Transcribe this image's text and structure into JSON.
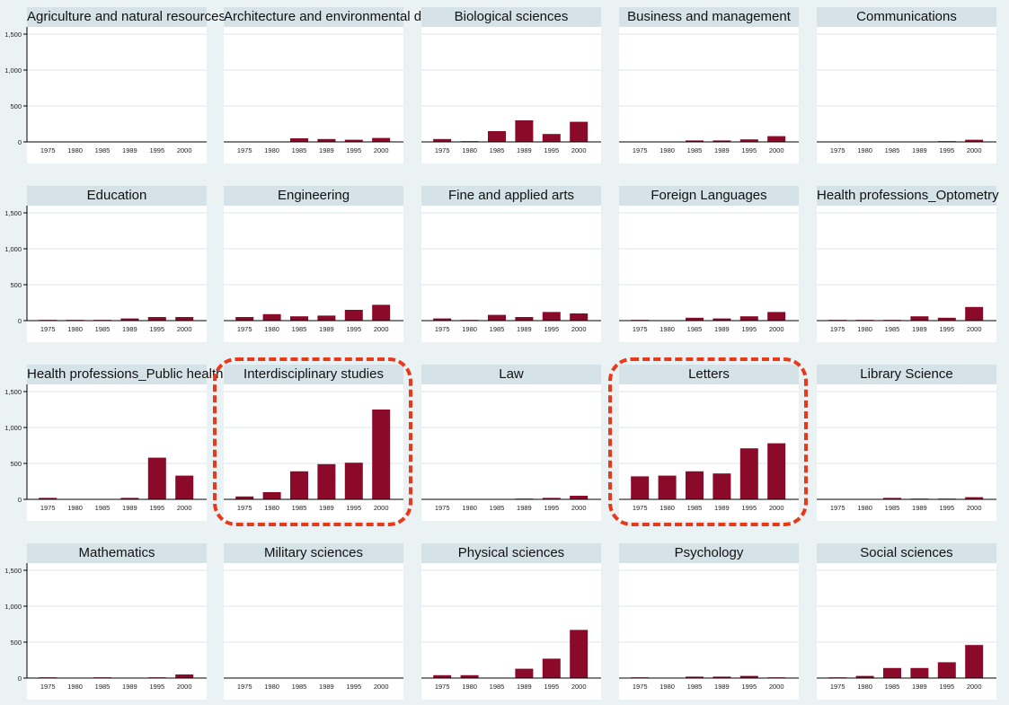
{
  "chart_data": {
    "type": "bar",
    "layout": "small-multiples 5x4",
    "categories": [
      "1975",
      "1980",
      "1985",
      "1989",
      "1995",
      "2000"
    ],
    "ylim": [
      0,
      1600
    ],
    "yticks": [
      0,
      500,
      1000,
      1500
    ],
    "ytick_labels": [
      "0",
      "500",
      "1,000",
      "1,500"
    ],
    "bar_color": "#8b0a2a",
    "grid": true,
    "panels": [
      {
        "title": "Agriculture and natural resources",
        "values": [
          0,
          0,
          0,
          0,
          0,
          0
        ]
      },
      {
        "title": "Architecture and environmental design",
        "values": [
          0,
          0,
          50,
          40,
          30,
          55
        ]
      },
      {
        "title": "Biological sciences",
        "values": [
          40,
          10,
          150,
          300,
          110,
          280
        ]
      },
      {
        "title": "Business and management",
        "values": [
          0,
          0,
          20,
          20,
          35,
          80
        ]
      },
      {
        "title": "Communications",
        "values": [
          0,
          0,
          0,
          0,
          10,
          30
        ]
      },
      {
        "title": "Education",
        "values": [
          10,
          10,
          10,
          30,
          50,
          50
        ]
      },
      {
        "title": "Engineering",
        "values": [
          50,
          90,
          60,
          70,
          150,
          220
        ]
      },
      {
        "title": "Fine and applied arts",
        "values": [
          30,
          10,
          80,
          50,
          120,
          100
        ]
      },
      {
        "title": "Foreign Languages",
        "values": [
          10,
          0,
          40,
          30,
          60,
          120
        ]
      },
      {
        "title": "Health professions_Optometry",
        "values": [
          10,
          10,
          10,
          60,
          40,
          190
        ]
      },
      {
        "title": "Health professions_Public health",
        "values": [
          20,
          5,
          5,
          20,
          580,
          330
        ]
      },
      {
        "title": "Interdisciplinary studies",
        "values": [
          40,
          100,
          390,
          490,
          510,
          1250
        ],
        "highlighted": true
      },
      {
        "title": "Law",
        "values": [
          0,
          0,
          5,
          10,
          20,
          50
        ]
      },
      {
        "title": "Letters",
        "values": [
          320,
          330,
          390,
          360,
          710,
          780
        ],
        "highlighted": true
      },
      {
        "title": "Library Science",
        "values": [
          0,
          0,
          20,
          10,
          10,
          30
        ]
      },
      {
        "title": "Mathematics",
        "values": [
          10,
          5,
          10,
          5,
          10,
          50
        ]
      },
      {
        "title": "Military sciences",
        "values": [
          0,
          0,
          0,
          0,
          0,
          0
        ]
      },
      {
        "title": "Physical sciences",
        "values": [
          40,
          40,
          0,
          130,
          270,
          670
        ]
      },
      {
        "title": "Psychology",
        "values": [
          10,
          0,
          20,
          20,
          30,
          10
        ]
      },
      {
        "title": "Social sciences",
        "values": [
          10,
          30,
          140,
          140,
          220,
          460
        ]
      }
    ]
  }
}
